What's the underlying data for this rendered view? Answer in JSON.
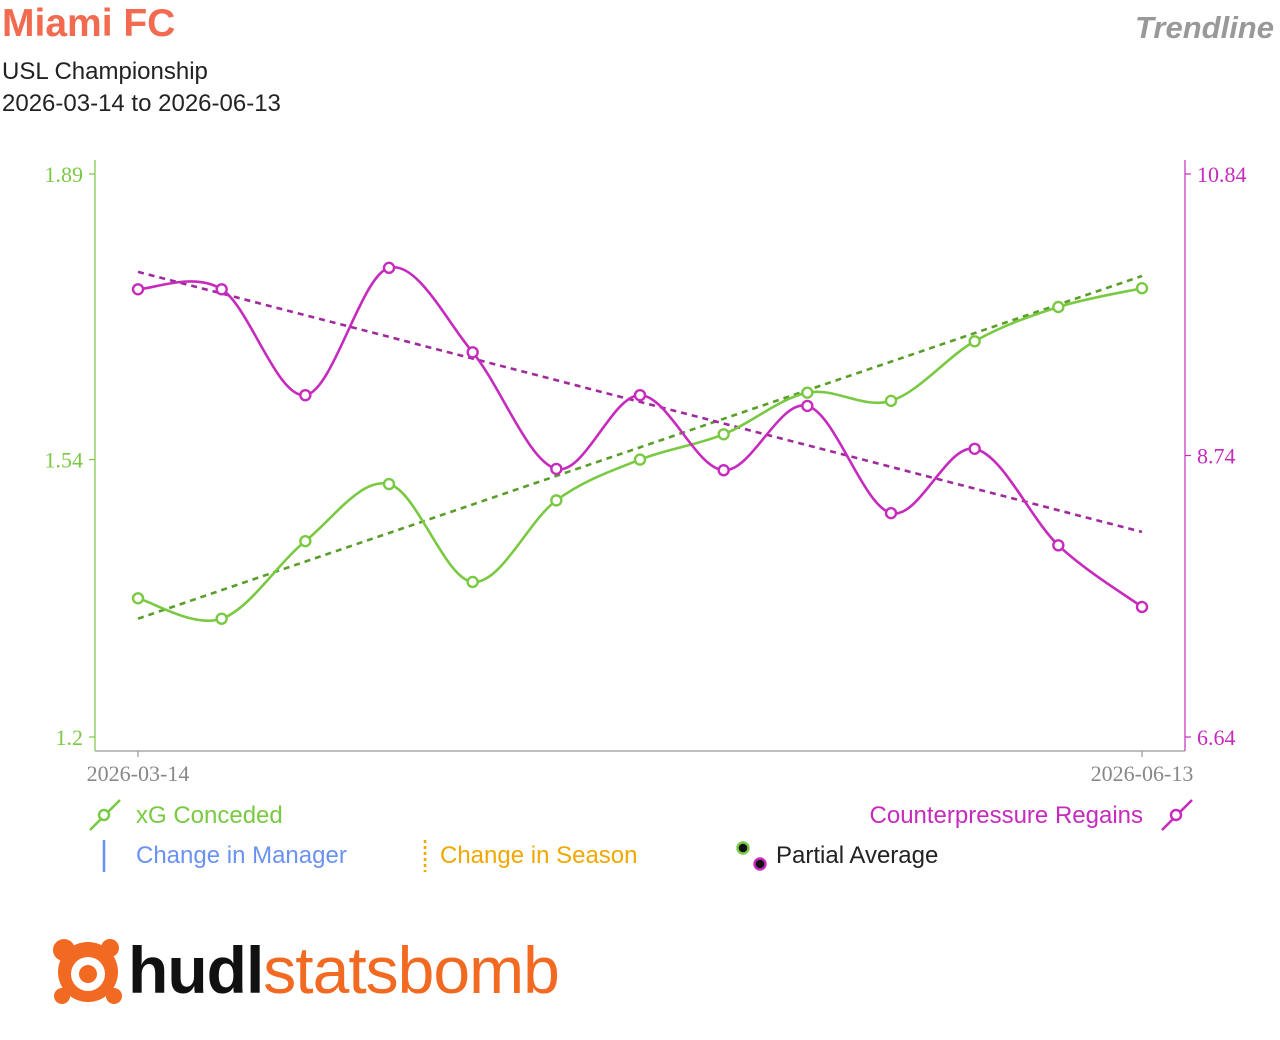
{
  "header": {
    "team": "Miami FC",
    "competition": "USL Championship",
    "date_range": "2026-03-14 to 2026-06-13",
    "mode": "Trendline"
  },
  "colors": {
    "team": "#f26a4f",
    "left": "#7ac943",
    "left_trend": "#5a9e2a",
    "right": "#c62bbd",
    "right_trend": "#a02a9c",
    "manager": "#6a92f0",
    "season": "#f0a800"
  },
  "legend": {
    "left_series": "xG Conceded",
    "right_series": "Counterpressure Regains",
    "manager": "Change in Manager",
    "season": "Change in Season",
    "partial": "Partial Average"
  },
  "brand": {
    "part1": "hudl",
    "part2": "statsbomb"
  },
  "chart_data": {
    "type": "line",
    "x_tick_labels": [
      "2026-03-14",
      "2026-06-13"
    ],
    "x": [
      1,
      2,
      3,
      4,
      5,
      6,
      7,
      8,
      9,
      10,
      11,
      12,
      13
    ],
    "y_left": {
      "range": [
        1.2,
        1.89
      ],
      "ticks": [
        "1.2",
        "1.54",
        "1.89"
      ]
    },
    "y_right": {
      "range": [
        6.64,
        10.84
      ],
      "ticks": [
        "6.64",
        "8.74",
        "10.84"
      ]
    },
    "series": [
      {
        "name": "xG Conceded",
        "axis": "left",
        "values": [
          1.37,
          1.345,
          1.44,
          1.51,
          1.39,
          1.49,
          1.54,
          1.571,
          1.622,
          1.612,
          1.685,
          1.727,
          1.75
        ],
        "trend": [
          1.345,
          1.765
        ]
      },
      {
        "name": "Counterpressure Regains",
        "axis": "right",
        "values": [
          9.98,
          9.98,
          9.19,
          10.14,
          9.51,
          8.64,
          9.19,
          8.63,
          9.11,
          8.31,
          8.79,
          8.07,
          7.61
        ],
        "trend": [
          10.11,
          8.17
        ]
      }
    ]
  }
}
